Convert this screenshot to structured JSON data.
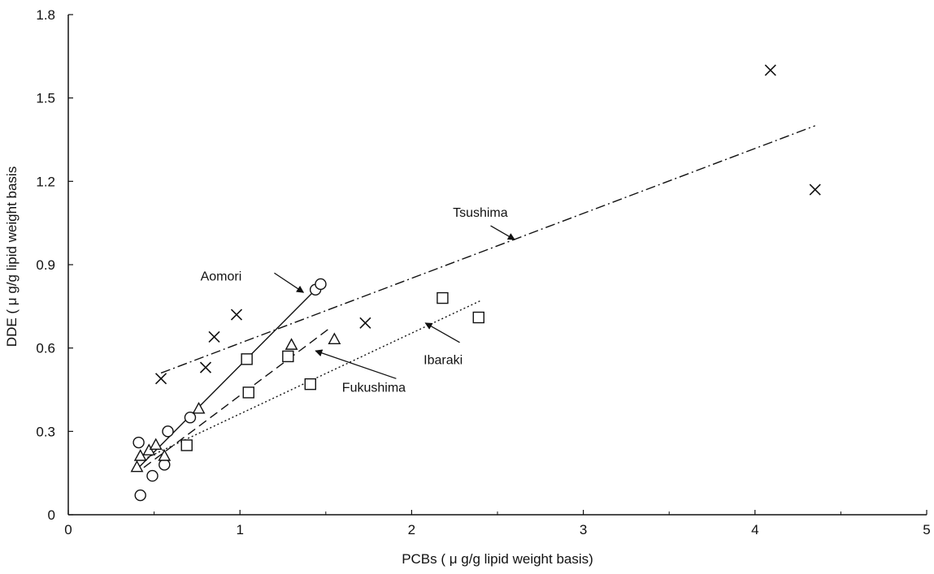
{
  "chart_data": {
    "type": "scatter",
    "xlabel": "PCBs ( μ g/g lipid weight basis)",
    "ylabel": "DDE ( μ g/g lipid weight basis",
    "xlim": [
      0,
      5
    ],
    "ylim": [
      0,
      1.8
    ],
    "x_ticks": [
      0,
      1,
      2,
      3,
      4,
      5
    ],
    "x_tick_labels": [
      "0",
      "1",
      "2",
      "3",
      "4",
      "5"
    ],
    "y_ticks": [
      0,
      0.3,
      0.6,
      0.9,
      1.2,
      1.5,
      1.8
    ],
    "y_tick_labels": [
      "0",
      "0.3",
      "0.6",
      "0.9",
      "1.2",
      "1.5",
      "1.8"
    ],
    "grid": false,
    "series": [
      {
        "name": "Aomori",
        "marker": "circle",
        "points": [
          [
            0.41,
            0.26
          ],
          [
            0.42,
            0.07
          ],
          [
            0.49,
            0.14
          ],
          [
            0.56,
            0.18
          ],
          [
            0.58,
            0.3
          ],
          [
            0.71,
            0.35
          ],
          [
            1.44,
            0.81
          ],
          [
            1.47,
            0.83
          ]
        ],
        "fit_line": {
          "style": "solid",
          "from": [
            0.41,
            0.17
          ],
          "to": [
            1.44,
            0.81
          ]
        }
      },
      {
        "name": "Fukushima",
        "marker": "triangle",
        "points": [
          [
            0.4,
            0.17
          ],
          [
            0.42,
            0.21
          ],
          [
            0.47,
            0.23
          ],
          [
            0.51,
            0.25
          ],
          [
            0.56,
            0.21
          ],
          [
            0.76,
            0.38
          ],
          [
            1.3,
            0.61
          ],
          [
            1.55,
            0.63
          ]
        ],
        "fit_line": {
          "style": "dashed",
          "from": [
            0.44,
            0.17
          ],
          "to": [
            1.52,
            0.67
          ]
        }
      },
      {
        "name": "Ibaraki",
        "marker": "square",
        "points": [
          [
            0.69,
            0.25
          ],
          [
            1.04,
            0.56
          ],
          [
            1.05,
            0.44
          ],
          [
            1.28,
            0.57
          ],
          [
            1.41,
            0.47
          ],
          [
            2.18,
            0.78
          ],
          [
            2.39,
            0.71
          ]
        ],
        "fit_line": {
          "style": "dotted",
          "from": [
            0.44,
            0.2
          ],
          "to": [
            2.4,
            0.77
          ]
        }
      },
      {
        "name": "Tsushima",
        "marker": "cross",
        "points": [
          [
            0.54,
            0.49
          ],
          [
            0.8,
            0.53
          ],
          [
            0.85,
            0.64
          ],
          [
            0.98,
            0.72
          ],
          [
            1.73,
            0.69
          ],
          [
            4.09,
            1.6
          ],
          [
            4.35,
            1.17
          ]
        ],
        "fit_line": {
          "style": "dashdot",
          "from": [
            0.54,
            0.51
          ],
          "to": [
            4.35,
            1.4
          ]
        }
      }
    ],
    "annotations": [
      {
        "text": "Aomori",
        "label_at": [
          0.89,
          0.86
        ],
        "arrow_from": [
          1.2,
          0.87
        ],
        "arrow_to": [
          1.37,
          0.8
        ],
        "anchor": "middle"
      },
      {
        "text": "Tsushima",
        "label_at": [
          2.4,
          1.09
        ],
        "arrow_from": [
          2.46,
          1.04
        ],
        "arrow_to": [
          2.6,
          0.99
        ],
        "anchor": "middle"
      },
      {
        "text": "Ibaraki",
        "label_at": [
          2.07,
          0.56
        ],
        "arrow_from": [
          2.28,
          0.62
        ],
        "arrow_to": [
          2.08,
          0.69
        ],
        "anchor": "start"
      },
      {
        "text": "Fukushima",
        "label_at": [
          1.78,
          0.46
        ],
        "arrow_from": [
          1.91,
          0.49
        ],
        "arrow_to": [
          1.44,
          0.59
        ],
        "anchor": "middle"
      }
    ]
  }
}
